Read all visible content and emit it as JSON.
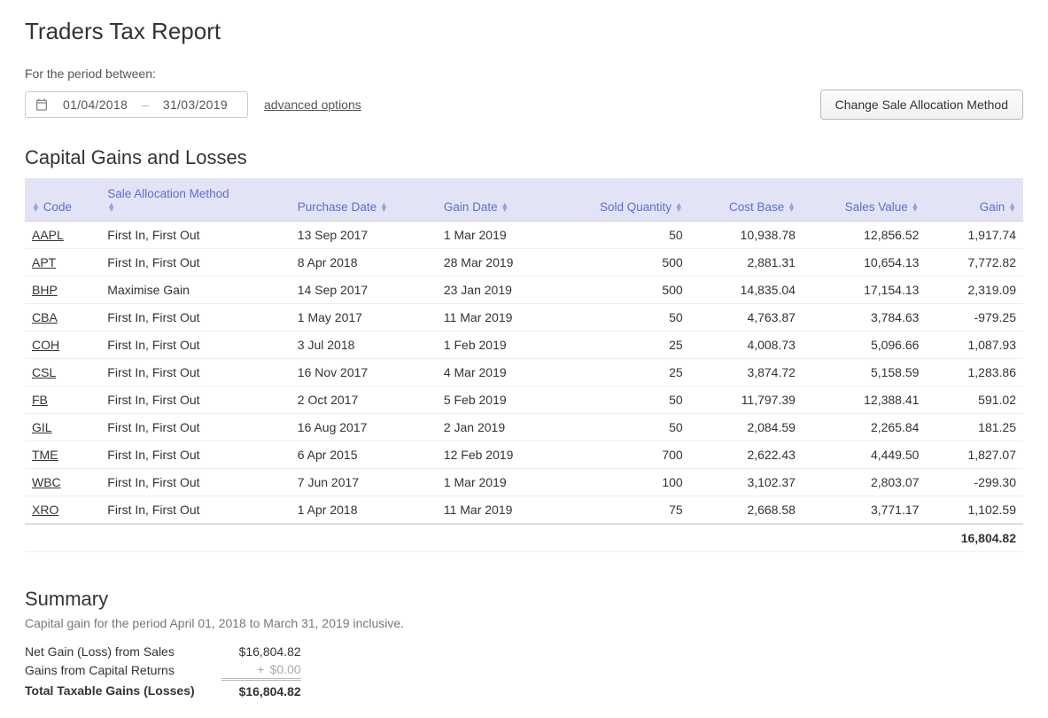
{
  "page_title": "Traders Tax Report",
  "period_label": "For the period between:",
  "date_from": "01/04/2018",
  "date_to": "31/03/2019",
  "date_sep": "–",
  "advanced_options_label": "advanced options",
  "change_method_btn": "Change Sale Allocation Method",
  "section_title": "Capital Gains and Losses",
  "columns": {
    "code": "Code",
    "method": "Sale Allocation Method",
    "purchase_date": "Purchase Date",
    "gain_date": "Gain Date",
    "sold_qty": "Sold Quantity",
    "cost_base": "Cost Base",
    "sales_value": "Sales Value",
    "gain": "Gain"
  },
  "rows": [
    {
      "code": "AAPL",
      "method": "First In, First Out",
      "purchase_date": "13 Sep 2017",
      "gain_date": "1 Mar 2019",
      "sold_qty": "50",
      "cost_base": "10,938.78",
      "sales_value": "12,856.52",
      "gain": "1,917.74",
      "neg": false
    },
    {
      "code": "APT",
      "method": "First In, First Out",
      "purchase_date": "8 Apr 2018",
      "gain_date": "28 Mar 2019",
      "sold_qty": "500",
      "cost_base": "2,881.31",
      "sales_value": "10,654.13",
      "gain": "7,772.82",
      "neg": false
    },
    {
      "code": "BHP",
      "method": "Maximise Gain",
      "purchase_date": "14 Sep 2017",
      "gain_date": "23 Jan 2019",
      "sold_qty": "500",
      "cost_base": "14,835.04",
      "sales_value": "17,154.13",
      "gain": "2,319.09",
      "neg": false
    },
    {
      "code": "CBA",
      "method": "First In, First Out",
      "purchase_date": "1 May 2017",
      "gain_date": "11 Mar 2019",
      "sold_qty": "50",
      "cost_base": "4,763.87",
      "sales_value": "3,784.63",
      "gain": "-979.25",
      "neg": true
    },
    {
      "code": "COH",
      "method": "First In, First Out",
      "purchase_date": "3 Jul 2018",
      "gain_date": "1 Feb 2019",
      "sold_qty": "25",
      "cost_base": "4,008.73",
      "sales_value": "5,096.66",
      "gain": "1,087.93",
      "neg": false
    },
    {
      "code": "CSL",
      "method": "First In, First Out",
      "purchase_date": "16 Nov 2017",
      "gain_date": "4 Mar 2019",
      "sold_qty": "25",
      "cost_base": "3,874.72",
      "sales_value": "5,158.59",
      "gain": "1,283.86",
      "neg": false
    },
    {
      "code": "FB",
      "method": "First In, First Out",
      "purchase_date": "2 Oct 2017",
      "gain_date": "5 Feb 2019",
      "sold_qty": "50",
      "cost_base": "11,797.39",
      "sales_value": "12,388.41",
      "gain": "591.02",
      "neg": false
    },
    {
      "code": "GIL",
      "method": "First In, First Out",
      "purchase_date": "16 Aug 2017",
      "gain_date": "2 Jan 2019",
      "sold_qty": "50",
      "cost_base": "2,084.59",
      "sales_value": "2,265.84",
      "gain": "181.25",
      "neg": false
    },
    {
      "code": "TME",
      "method": "First In, First Out",
      "purchase_date": "6 Apr 2015",
      "gain_date": "12 Feb 2019",
      "sold_qty": "700",
      "cost_base": "2,622.43",
      "sales_value": "4,449.50",
      "gain": "1,827.07",
      "neg": false
    },
    {
      "code": "WBC",
      "method": "First In, First Out",
      "purchase_date": "7 Jun 2017",
      "gain_date": "1 Mar 2019",
      "sold_qty": "100",
      "cost_base": "3,102.37",
      "sales_value": "2,803.07",
      "gain": "-299.30",
      "neg": true
    },
    {
      "code": "XRO",
      "method": "First In, First Out",
      "purchase_date": "1 Apr 2018",
      "gain_date": "11 Mar 2019",
      "sold_qty": "75",
      "cost_base": "2,668.58",
      "sales_value": "3,771.17",
      "gain": "1,102.59",
      "neg": false
    }
  ],
  "total_gain": "16,804.82",
  "summary": {
    "title": "Summary",
    "subtitle": "Capital gain for the period April 01, 2018 to March 31, 2019 inclusive.",
    "net_gain_label": "Net Gain (Loss) from Sales",
    "net_gain_value": "$16,804.82",
    "cap_returns_label": "Gains from Capital Returns",
    "cap_returns_value": "$0.00",
    "total_label": "Total Taxable Gains (Losses)",
    "total_value": "$16,804.82"
  }
}
